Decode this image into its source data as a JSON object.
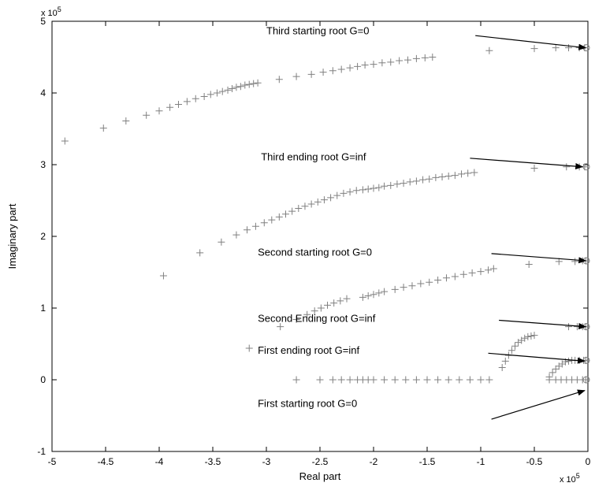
{
  "chart_data": {
    "type": "scatter",
    "xlabel": "Real part",
    "ylabel": "Imaginary part",
    "x_multiplier": {
      "base": "x 10",
      "exp": "5"
    },
    "y_multiplier": {
      "base": "x 10",
      "exp": "5"
    },
    "xlim": [
      -5,
      0
    ],
    "ylim": [
      -1,
      5
    ],
    "x_ticks": [
      "-5",
      "-4.5",
      "-4",
      "-3.5",
      "-3",
      "-2.5",
      "-2",
      "-1.5",
      "-1",
      "-0.5",
      "0"
    ],
    "y_ticks": [
      "-1",
      "0",
      "1",
      "2",
      "3",
      "4",
      "5"
    ],
    "grid": false,
    "marker_color": "#808080",
    "branches": [
      {
        "x": [
          -4.88,
          -4.52,
          -4.31,
          -4.12,
          -4.0,
          -3.9,
          -3.82,
          -3.74,
          -3.66,
          -3.58,
          -3.52,
          -3.46,
          -3.41,
          -3.36,
          -3.32,
          -3.28,
          -3.24,
          -3.2,
          -3.16,
          -3.12,
          -3.08,
          -2.88,
          -2.72,
          -2.58,
          -2.47,
          -2.38,
          -2.3,
          -2.22,
          -2.15,
          -2.08,
          -2.0,
          -1.92,
          -1.84,
          -1.76,
          -1.68,
          -1.6,
          -1.52,
          -1.45,
          -0.92,
          -0.5,
          -0.3,
          -0.18,
          -0.08,
          -0.03
        ],
        "y": [
          3.33,
          3.51,
          3.61,
          3.69,
          3.75,
          3.8,
          3.84,
          3.88,
          3.92,
          3.95,
          3.98,
          4.0,
          4.02,
          4.04,
          4.06,
          4.08,
          4.09,
          4.11,
          4.12,
          4.13,
          4.14,
          4.19,
          4.23,
          4.26,
          4.29,
          4.31,
          4.33,
          4.35,
          4.37,
          4.39,
          4.4,
          4.42,
          4.43,
          4.45,
          4.46,
          4.48,
          4.49,
          4.5,
          4.59,
          4.62,
          4.63,
          4.63,
          4.63,
          4.63
        ]
      },
      {
        "x": [
          -3.96,
          -3.62,
          -3.42,
          -3.28,
          -3.18,
          -3.1,
          -3.02,
          -2.95,
          -2.88,
          -2.82,
          -2.76,
          -2.7,
          -2.64,
          -2.58,
          -2.52,
          -2.46,
          -2.4,
          -2.34,
          -2.28,
          -2.22,
          -2.16,
          -2.1,
          -2.05,
          -2.0,
          -1.95,
          -1.9,
          -1.84,
          -1.78,
          -1.72,
          -1.66,
          -1.6,
          -1.54,
          -1.48,
          -1.42,
          -1.36,
          -1.3,
          -1.24,
          -1.18,
          -1.12,
          -1.06,
          -0.5,
          -0.2,
          -0.08,
          -0.03
        ],
        "y": [
          1.45,
          1.77,
          1.92,
          2.02,
          2.09,
          2.14,
          2.19,
          2.23,
          2.27,
          2.31,
          2.35,
          2.39,
          2.42,
          2.45,
          2.48,
          2.51,
          2.54,
          2.57,
          2.6,
          2.62,
          2.64,
          2.65,
          2.66,
          2.67,
          2.68,
          2.7,
          2.71,
          2.73,
          2.74,
          2.76,
          2.77,
          2.79,
          2.8,
          2.82,
          2.83,
          2.84,
          2.85,
          2.87,
          2.88,
          2.89,
          2.95,
          2.97,
          2.97,
          2.97
        ]
      },
      {
        "x": [
          -3.16,
          -2.87,
          -2.72,
          -2.62,
          -2.55,
          -2.49,
          -2.43,
          -2.37,
          -2.31,
          -2.25,
          -2.1,
          -2.05,
          -2.0,
          -1.95,
          -1.9,
          -1.8,
          -1.72,
          -1.64,
          -1.56,
          -1.48,
          -1.4,
          -1.32,
          -1.24,
          -1.16,
          -1.08,
          -1.0,
          -0.93,
          -0.88,
          -0.55,
          -0.27,
          -0.12,
          -0.05,
          -0.02
        ],
        "y": [
          0.44,
          0.74,
          0.84,
          0.91,
          0.96,
          1.0,
          1.04,
          1.07,
          1.1,
          1.13,
          1.15,
          1.17,
          1.19,
          1.21,
          1.23,
          1.26,
          1.29,
          1.31,
          1.34,
          1.36,
          1.39,
          1.42,
          1.44,
          1.47,
          1.49,
          1.51,
          1.53,
          1.55,
          1.61,
          1.65,
          1.65,
          1.66,
          1.66
        ]
      },
      {
        "x": [
          -2.72,
          -2.5,
          -2.38,
          -2.3,
          -2.22,
          -2.15,
          -2.1,
          -2.05,
          -2.0,
          -1.9,
          -1.8,
          -1.7,
          -1.6,
          -1.5,
          -1.4,
          -1.3,
          -1.2,
          -1.1,
          -1.0,
          -0.92,
          -0.36,
          -0.3,
          -0.25,
          -0.2,
          -0.15,
          -0.1,
          -0.05,
          -0.02
        ],
        "y": [
          0,
          0,
          0,
          0,
          0,
          0,
          0,
          0,
          0,
          0,
          0,
          0,
          0,
          0,
          0,
          0,
          0,
          0,
          0,
          0,
          0,
          0,
          0,
          0,
          0,
          0,
          0,
          0
        ]
      },
      {
        "x": [
          -0.8,
          -0.77,
          -0.74,
          -0.71,
          -0.68,
          -0.65,
          -0.62,
          -0.59,
          -0.56,
          -0.53,
          -0.5,
          -0.36,
          -0.33,
          -0.3,
          -0.27,
          -0.24,
          -0.21,
          -0.18,
          -0.15,
          -0.12,
          -0.08,
          -0.04,
          -0.02
        ],
        "y": [
          0.17,
          0.26,
          0.34,
          0.41,
          0.47,
          0.52,
          0.55,
          0.58,
          0.6,
          0.61,
          0.62,
          0.04,
          0.1,
          0.15,
          0.19,
          0.22,
          0.25,
          0.26,
          0.27,
          0.27,
          0.27,
          0.27,
          0.27
        ]
      },
      {
        "x": [
          -0.18,
          -0.1,
          -0.05,
          -0.02
        ],
        "y": [
          0.74,
          0.74,
          0.74,
          0.74
        ]
      }
    ],
    "end_circles": [
      {
        "x": 0,
        "y": 4.63
      },
      {
        "x": 0,
        "y": 2.97
      },
      {
        "x": 0,
        "y": 1.66
      },
      {
        "x": 0,
        "y": 0.74
      },
      {
        "x": 0,
        "y": 0.27
      },
      {
        "x": 0,
        "y": 0
      }
    ],
    "annotations": [
      {
        "text": "Third starting root G=0",
        "text_x": -3.0,
        "text_y": 4.82,
        "arrow_from": [
          -1.05,
          4.8
        ],
        "arrow_to": [
          -0.02,
          4.63
        ]
      },
      {
        "text": "Third ending root G=inf",
        "text_x": -3.05,
        "text_y": 3.06,
        "arrow_from": [
          -1.1,
          3.09
        ],
        "arrow_to": [
          -0.05,
          2.97
        ]
      },
      {
        "text": "Second starting root G=0",
        "text_x": -3.08,
        "text_y": 1.73,
        "arrow_from": [
          -0.9,
          1.76
        ],
        "arrow_to": [
          -0.02,
          1.66
        ]
      },
      {
        "text": "Second Ending root G=inf",
        "text_x": -3.08,
        "text_y": 0.81,
        "arrow_from": [
          -0.83,
          0.83
        ],
        "arrow_to": [
          -0.02,
          0.74
        ]
      },
      {
        "text": "First ending root G=inf",
        "text_x": -3.08,
        "text_y": 0.36,
        "arrow_from": [
          -0.93,
          0.37
        ],
        "arrow_to": [
          -0.03,
          0.26
        ]
      },
      {
        "text": "First starting root G=0",
        "text_x": -3.08,
        "text_y": -0.38,
        "arrow_from": [
          -0.9,
          -0.55
        ],
        "arrow_to": [
          -0.03,
          -0.15
        ]
      }
    ]
  }
}
